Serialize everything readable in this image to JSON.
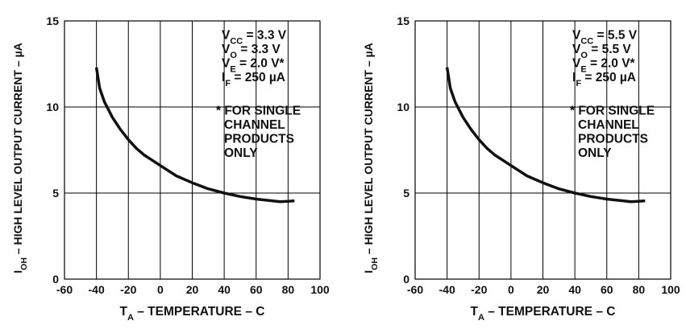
{
  "chart_data": [
    {
      "type": "line",
      "xlabel_main": "T",
      "xlabel_sub": "A",
      "xlabel_rest": " – TEMPERATURE –  C",
      "ylabel_main": "I",
      "ylabel_sub": "OH",
      "ylabel_rest": " – HIGH LEVEL OUTPUT CURRENT – µA",
      "xlim": [
        -60,
        100
      ],
      "ylim": [
        0,
        15
      ],
      "xticks": [
        -60,
        -40,
        -20,
        0,
        20,
        40,
        60,
        80,
        100
      ],
      "yticks": [
        0,
        5,
        10,
        15
      ],
      "grid": true,
      "series": [
        {
          "x": [
            -40,
            -38,
            -35,
            -30,
            -25,
            -20,
            -15,
            -10,
            -5,
            0,
            5,
            10,
            20,
            30,
            40,
            50,
            60,
            70,
            75,
            80,
            84
          ],
          "y": [
            12.3,
            11.1,
            10.3,
            9.4,
            8.7,
            8.1,
            7.6,
            7.2,
            6.9,
            6.6,
            6.3,
            6.0,
            5.6,
            5.25,
            5.0,
            4.8,
            4.65,
            4.55,
            4.5,
            4.52,
            4.55
          ]
        }
      ],
      "conditions": [
        {
          "main": "V",
          "sub": "CC",
          "rest": " = 3.3 V"
        },
        {
          "main": "V",
          "sub": "O",
          "rest": " = 3.3 V"
        },
        {
          "main": "V",
          "sub": "E",
          "rest": " = 2.0 V*"
        },
        {
          "main": "I",
          "sub": "F",
          "rest": " = 250 µA"
        }
      ],
      "note": [
        "* FOR SINGLE",
        "CHANNEL",
        "PRODUCTS",
        "ONLY"
      ]
    },
    {
      "type": "line",
      "xlabel_main": "T",
      "xlabel_sub": "A",
      "xlabel_rest": " – TEMPERATURE –  C",
      "ylabel_main": "I",
      "ylabel_sub": "OH",
      "ylabel_rest": " – HIGH LEVEL OUTPUT CURRENT – µA",
      "xlim": [
        -60,
        100
      ],
      "ylim": [
        0,
        15
      ],
      "xticks": [
        -60,
        -40,
        -20,
        0,
        20,
        40,
        60,
        80,
        100
      ],
      "yticks": [
        0,
        5,
        10,
        15
      ],
      "grid": true,
      "series": [
        {
          "x": [
            -40,
            -38,
            -35,
            -30,
            -25,
            -20,
            -15,
            -10,
            -5,
            0,
            5,
            10,
            20,
            30,
            40,
            50,
            60,
            70,
            75,
            80,
            84
          ],
          "y": [
            12.3,
            11.1,
            10.3,
            9.4,
            8.7,
            8.1,
            7.6,
            7.2,
            6.9,
            6.6,
            6.3,
            6.0,
            5.6,
            5.25,
            5.0,
            4.8,
            4.65,
            4.55,
            4.5,
            4.52,
            4.55
          ]
        }
      ],
      "conditions": [
        {
          "main": "V",
          "sub": "CC",
          "rest": " = 5.5 V"
        },
        {
          "main": "V",
          "sub": "O",
          "rest": " = 5.5 V"
        },
        {
          "main": "V",
          "sub": "E",
          "rest": " = 2.0 V*"
        },
        {
          "main": "I",
          "sub": "F",
          "rest": " = 250 µA"
        }
      ],
      "note": [
        "* FOR SINGLE",
        "CHANNEL",
        "PRODUCTS",
        "ONLY"
      ]
    }
  ]
}
